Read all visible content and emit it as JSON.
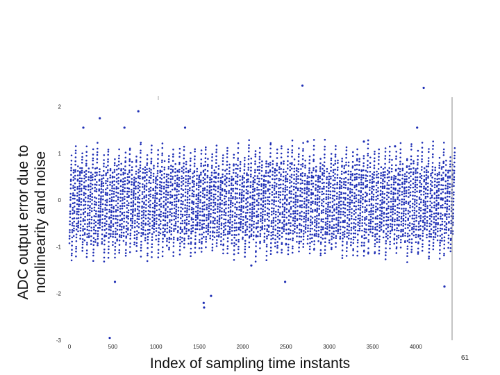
{
  "chart_data": {
    "type": "scatter",
    "title": "",
    "xlabel": "Index of sampling time instants",
    "ylabel_lines": [
      "ADC output error due to",
      "nonlinearity and noise"
    ],
    "xlim": [
      0,
      4450
    ],
    "ylim": [
      -3,
      2.2
    ],
    "x_ticks": [
      0,
      500,
      1000,
      1500,
      2000,
      2500,
      3000,
      3500,
      4000
    ],
    "y_ticks": [
      -3,
      -2,
      -1,
      0,
      1,
      2
    ],
    "grid": false,
    "legend": "none",
    "marker_color": "#1f2fb5",
    "n_points": 4450,
    "columns": {
      "x_start": 0,
      "x_step": 25,
      "count": 178,
      "y_min": [
        -0.8,
        -1.1,
        -0.7,
        -1.0,
        -0.6
      ],
      "y_max": [
        0.9,
        0.6,
        1.1,
        0.7,
        0.5
      ]
    },
    "outliers": [
      {
        "x": 160,
        "y": 1.55
      },
      {
        "x": 350,
        "y": 1.75
      },
      {
        "x": 465,
        "y": -2.95
      },
      {
        "x": 525,
        "y": -1.75
      },
      {
        "x": 635,
        "y": 1.55
      },
      {
        "x": 795,
        "y": 1.9
      },
      {
        "x": 1335,
        "y": 1.55
      },
      {
        "x": 1550,
        "y": -2.2
      },
      {
        "x": 1555,
        "y": -2.3
      },
      {
        "x": 1635,
        "y": -2.05
      },
      {
        "x": 2100,
        "y": -1.4
      },
      {
        "x": 2490,
        "y": -1.75
      },
      {
        "x": 2690,
        "y": 2.45
      },
      {
        "x": 2750,
        "y": 1.25
      },
      {
        "x": 3400,
        "y": 1.25
      },
      {
        "x": 3760,
        "y": 1.15
      },
      {
        "x": 4015,
        "y": 1.55
      },
      {
        "x": 4090,
        "y": 2.4
      },
      {
        "x": 4330,
        "y": -1.85
      }
    ]
  },
  "slide": {
    "page_number": "61"
  }
}
